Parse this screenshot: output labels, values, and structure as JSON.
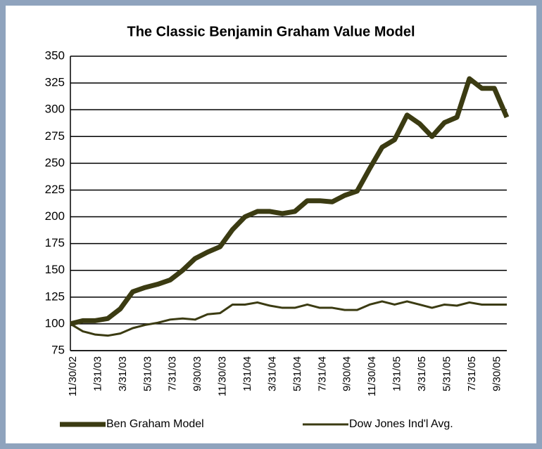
{
  "chart_data": {
    "type": "line",
    "title": "The Classic Benjamin Graham Value Model",
    "categories": [
      "11/30/02",
      null,
      "1/31/03",
      null,
      "3/31/03",
      null,
      "5/31/03",
      null,
      "7/31/03",
      null,
      "9/30/03",
      null,
      "11/30/03",
      null,
      "1/31/04",
      null,
      "3/31/04",
      null,
      "5/31/04",
      null,
      "7/31/04",
      null,
      "9/30/04",
      null,
      "11/30/04",
      null,
      "1/31/05",
      null,
      "3/31/05",
      null,
      "5/31/05",
      null,
      "7/31/05",
      null,
      "9/30/05",
      null
    ],
    "series": [
      {
        "name": "Ben Graham Model",
        "color": "#3b3b12",
        "width": 7,
        "values": [
          100,
          103,
          103,
          105,
          114,
          130,
          134,
          137,
          141,
          150,
          161,
          167,
          172,
          188,
          200,
          205,
          205,
          203,
          205,
          215,
          215,
          214,
          220,
          224,
          245,
          265,
          272,
          295,
          287,
          275,
          288,
          293,
          329,
          320,
          320,
          293
        ]
      },
      {
        "name": "Dow Jones Ind'l Avg.",
        "color": "#3b3b12",
        "width": 3,
        "values": [
          100,
          93,
          90,
          89,
          91,
          96,
          99,
          101,
          104,
          105,
          104,
          109,
          110,
          118,
          118,
          120,
          117,
          115,
          115,
          118,
          115,
          115,
          113,
          113,
          118,
          121,
          118,
          121,
          118,
          115,
          118,
          117,
          120,
          118,
          118,
          118
        ]
      }
    ],
    "ylim": [
      75,
      350
    ],
    "yticks": [
      75,
      100,
      125,
      150,
      175,
      200,
      225,
      250,
      275,
      300,
      325,
      350
    ],
    "grid": true
  }
}
